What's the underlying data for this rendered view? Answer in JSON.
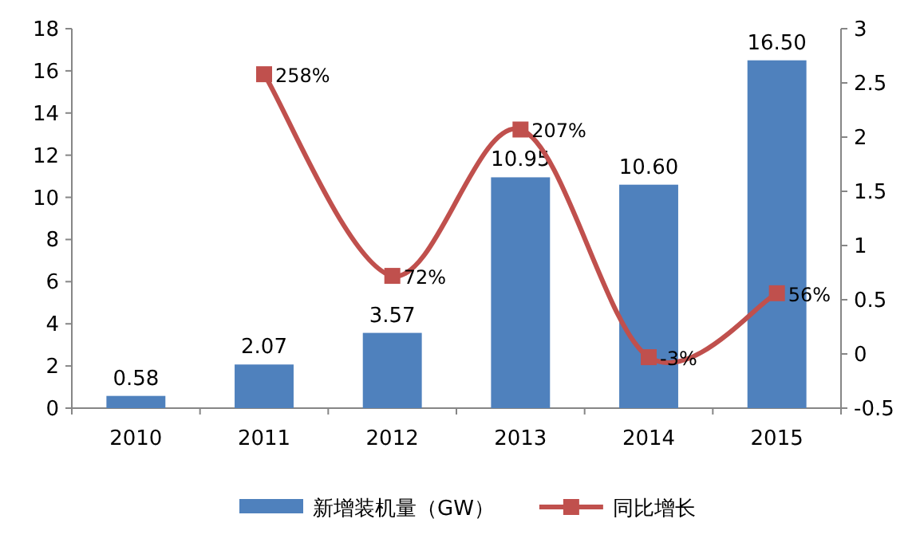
{
  "chart_data": {
    "type": "bar",
    "categories": [
      "2010",
      "2011",
      "2012",
      "2013",
      "2014",
      "2015"
    ],
    "series": [
      {
        "name": "新增装机量（GW）",
        "color": "#4f81bd",
        "values": [
          0.58,
          2.07,
          3.57,
          10.95,
          10.6,
          16.5
        ],
        "value_labels": [
          "0.58",
          "2.07",
          "3.57",
          "10.95",
          "10.60",
          "16.50"
        ]
      },
      {
        "name": "同比增长",
        "type": "line",
        "axis": "y2",
        "color": "#c0504d",
        "marker": "square",
        "values": [
          null,
          2.58,
          0.72,
          2.07,
          -0.03,
          0.56
        ],
        "value_labels": [
          null,
          "258%",
          "72%",
          "207%",
          "-3%",
          "56%"
        ]
      }
    ],
    "ylim": [
      0,
      18
    ],
    "yticks": [
      0,
      2,
      4,
      6,
      8,
      10,
      12,
      14,
      16,
      18
    ],
    "y2lim": [
      -0.5,
      3
    ],
    "y2ticks": [
      -0.5,
      0,
      0.5,
      1,
      1.5,
      2,
      2.5,
      3
    ],
    "legend": "bottom"
  }
}
